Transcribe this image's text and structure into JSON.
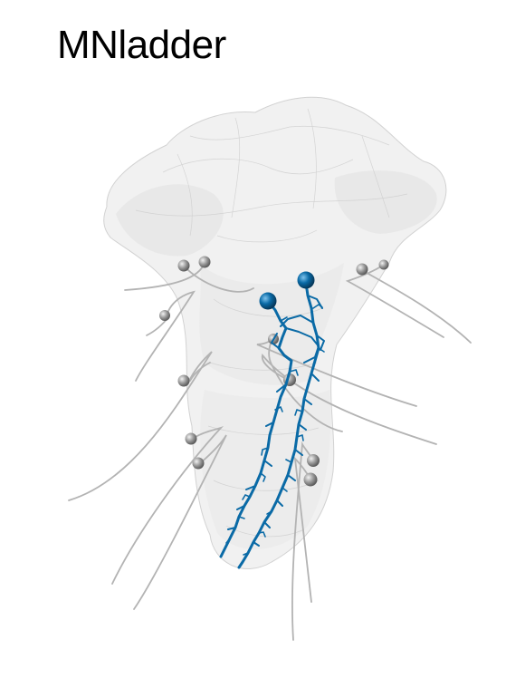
{
  "figure": {
    "title": "MNladder"
  },
  "colors": {
    "background": "#ffffff",
    "brain_mesh": "#e2e2e2",
    "brain_mesh_stroke": "#cfcfcf",
    "highlight_neuron": "#0a6aa6",
    "context_neurons": "#b3b3b3",
    "soma_grey": "#8c8c8c"
  },
  "render": {
    "highlighted_neuron_count": 2,
    "context_neuron_count": 15
  }
}
